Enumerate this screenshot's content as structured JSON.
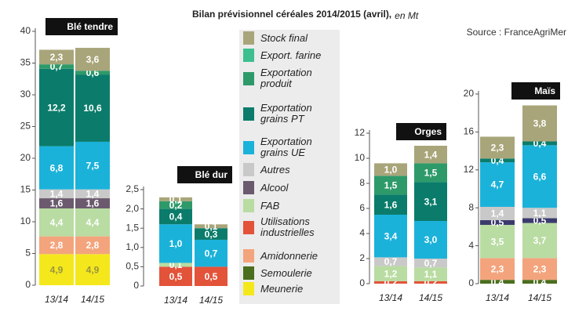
{
  "title": "Bilan prévisionnel céréales 2014/2015 (avril),",
  "unit": "en Mt",
  "source": "Source : FranceAgriMer",
  "chart_data": [
    {
      "type": "bar",
      "stacked": true,
      "title": "Blé tendre",
      "categories": [
        "13/14",
        "14/15"
      ],
      "ylim": [
        0,
        40
      ],
      "yticks": [
        0,
        5,
        10,
        15,
        20,
        25,
        30,
        35,
        40
      ],
      "series": [
        {
          "name": "Meunerie",
          "color": "#f4e81c",
          "values": [
            4.9,
            4.9
          ],
          "value_labels": [
            "4,9",
            "4,9"
          ]
        },
        {
          "name": "Semoulerie",
          "color": "#4a6e1e",
          "values": [
            null,
            null
          ],
          "value_labels": [
            null,
            null
          ]
        },
        {
          "name": "Amidonnerie",
          "color": "#f3a47c",
          "values": [
            2.8,
            2.8
          ],
          "value_labels": [
            "2,8",
            "2,8"
          ]
        },
        {
          "name": "Utilisations industrielles",
          "color": "#e2533a",
          "values": [
            null,
            null
          ],
          "value_labels": [
            null,
            null
          ]
        },
        {
          "name": "FAB",
          "color": "#b9dca2",
          "values": [
            4.4,
            4.4
          ],
          "value_labels": [
            "4,4",
            "4,4"
          ]
        },
        {
          "name": "Alcool",
          "color": "#6b5a6e",
          "values": [
            1.6,
            1.6
          ],
          "value_labels": [
            "1,6",
            "1,6"
          ]
        },
        {
          "name": "Autres",
          "color": "#c9c9c9",
          "values": [
            1.4,
            1.4
          ],
          "value_labels": [
            "1,4",
            "1,4"
          ]
        },
        {
          "name": "Exportation grains UE",
          "color": "#1bb2da",
          "values": [
            6.8,
            7.5
          ],
          "value_labels": [
            "6,8",
            "7,5"
          ]
        },
        {
          "name": "Exportation grains PT",
          "color": "#0b7c6b",
          "values": [
            12.2,
            10.6
          ],
          "value_labels": [
            "12,2",
            "10,6"
          ]
        },
        {
          "name": "Exportation produit",
          "color": "#2e9a6a",
          "values": [
            0.7,
            0.6
          ],
          "value_labels": [
            "0,7",
            "0,6"
          ]
        },
        {
          "name": "Export. farine",
          "color": "#3dbf8f",
          "values": [
            null,
            null
          ],
          "value_labels": [
            null,
            null
          ]
        },
        {
          "name": "Stock final",
          "color": "#a9a57a",
          "values": [
            2.3,
            3.6
          ],
          "value_labels": [
            "2,3",
            "3,6"
          ]
        }
      ]
    },
    {
      "type": "bar",
      "stacked": true,
      "title": "Blé dur",
      "categories": [
        "13/14",
        "14/15"
      ],
      "ylim": [
        0,
        2.5
      ],
      "yticks": [
        0,
        {
          "value": 0.5,
          "label": "0,5"
        },
        {
          "value": 1,
          "label": "1,0"
        },
        {
          "value": 1.5,
          "label": "1,5"
        },
        {
          "value": 2,
          "label": "2,0"
        },
        {
          "value": 2.5,
          "label": "2,5"
        }
      ],
      "series": [
        {
          "name": "Meunerie",
          "color": "#f4e81c",
          "values": [
            null,
            null
          ],
          "value_labels": [
            null,
            null
          ]
        },
        {
          "name": "Semoulerie",
          "color": "#4a6e1e",
          "values": [
            null,
            null
          ],
          "value_labels": [
            null,
            null
          ]
        },
        {
          "name": "Amidonnerie",
          "color": "#f3a47c",
          "values": [
            null,
            null
          ],
          "value_labels": [
            null,
            null
          ]
        },
        {
          "name": "Utilisations industrielles",
          "color": "#e2533a",
          "values": [
            0.5,
            0.5
          ],
          "value_labels": [
            "0,5",
            "0,5"
          ]
        },
        {
          "name": "FAB",
          "color": "#b9dca2",
          "values": [
            0.1,
            null
          ],
          "value_labels": [
            "0,1",
            null
          ]
        },
        {
          "name": "Alcool",
          "color": "#6b5a6e",
          "values": [
            null,
            null
          ],
          "value_labels": [
            null,
            null
          ]
        },
        {
          "name": "Autres",
          "color": "#c9c9c9",
          "values": [
            null,
            null
          ],
          "value_labels": [
            null,
            null
          ]
        },
        {
          "name": "Exportation grains UE",
          "color": "#1bb2da",
          "values": [
            1.0,
            0.7
          ],
          "value_labels": [
            "1,0",
            "0,7"
          ]
        },
        {
          "name": "Exportation grains PT",
          "color": "#0b7c6b",
          "values": [
            0.4,
            0.3
          ],
          "value_labels": [
            "0,4",
            "0,3"
          ]
        },
        {
          "name": "Exportation produit",
          "color": "#2e9a6a",
          "values": [
            0.2,
            null
          ],
          "value_labels": [
            "0,2",
            null
          ]
        },
        {
          "name": "Export. farine",
          "color": "#3dbf8f",
          "values": [
            null,
            null
          ],
          "value_labels": [
            null,
            null
          ]
        },
        {
          "name": "Stock final",
          "color": "#a9a57a",
          "values": [
            0.1,
            0.1
          ],
          "value_labels": [
            "0,1",
            "0,1"
          ]
        }
      ]
    },
    {
      "type": "bar",
      "stacked": true,
      "title": "Orges",
      "categories": [
        "13/14",
        "14/15"
      ],
      "ylim": [
        0,
        12
      ],
      "yticks": [
        0,
        2,
        4,
        6,
        8,
        10,
        12
      ],
      "series": [
        {
          "name": "Meunerie",
          "color": "#f4e81c",
          "values": [
            null,
            null
          ],
          "value_labels": [
            null,
            null
          ]
        },
        {
          "name": "Semoulerie",
          "color": "#4a6e1e",
          "values": [
            null,
            null
          ],
          "value_labels": [
            null,
            null
          ]
        },
        {
          "name": "Amidonnerie",
          "color": "#f3a47c",
          "values": [
            null,
            null
          ],
          "value_labels": [
            null,
            null
          ]
        },
        {
          "name": "Utilisations industrielles",
          "color": "#e2533a",
          "values": [
            0.2,
            0.2
          ],
          "value_labels": [
            "0,2",
            "0,2"
          ]
        },
        {
          "name": "FAB",
          "color": "#b9dca2",
          "values": [
            1.2,
            1.1
          ],
          "value_labels": [
            "1,2",
            "1,1"
          ]
        },
        {
          "name": "Alcool",
          "color": "#6b5a6e",
          "values": [
            null,
            null
          ],
          "value_labels": [
            null,
            null
          ]
        },
        {
          "name": "Autres",
          "color": "#c9c9c9",
          "values": [
            0.7,
            0.7
          ],
          "value_labels": [
            "0,7",
            "0,7"
          ]
        },
        {
          "name": "Exportation grains UE",
          "color": "#1bb2da",
          "values": [
            3.4,
            3.0
          ],
          "value_labels": [
            "3,4",
            "3,0"
          ]
        },
        {
          "name": "Exportation grains PT",
          "color": "#0b7c6b",
          "values": [
            1.6,
            3.1
          ],
          "value_labels": [
            "1,6",
            "3,1"
          ]
        },
        {
          "name": "Exportation produit",
          "color": "#2e9a6a",
          "values": [
            1.5,
            1.5
          ],
          "value_labels": [
            "1,5",
            "1,5"
          ]
        },
        {
          "name": "Export. farine",
          "color": "#3dbf8f",
          "values": [
            null,
            null
          ],
          "value_labels": [
            null,
            null
          ]
        },
        {
          "name": "Stock final",
          "color": "#a9a57a",
          "values": [
            1.0,
            1.4
          ],
          "value_labels": [
            "1,0",
            "1,4"
          ]
        }
      ]
    },
    {
      "type": "bar",
      "stacked": true,
      "title": "Maïs",
      "categories": [
        "13/14",
        "14/15"
      ],
      "ylim": [
        0,
        20
      ],
      "yticks": [
        0,
        4,
        8,
        12,
        16,
        20
      ],
      "series": [
        {
          "name": "Meunerie",
          "color": "#f4e81c",
          "values": [
            null,
            null
          ],
          "value_labels": [
            null,
            null
          ]
        },
        {
          "name": "Semoulerie",
          "color": "#4a6e1e",
          "values": [
            0.4,
            0.4
          ],
          "value_labels": [
            "0,4",
            "0,4"
          ]
        },
        {
          "name": "Amidonnerie",
          "color": "#f3a47c",
          "values": [
            2.3,
            2.3
          ],
          "value_labels": [
            "2,3",
            "2,3"
          ]
        },
        {
          "name": "Utilisations industrielles",
          "color": "#e2533a",
          "values": [
            null,
            null
          ],
          "value_labels": [
            null,
            null
          ]
        },
        {
          "name": "FAB",
          "color": "#b9dca2",
          "values": [
            3.5,
            3.7
          ],
          "value_labels": [
            "3,5",
            "3,7"
          ]
        },
        {
          "name": "Alcool",
          "color": "#3b3a6e",
          "values": [
            0.5,
            0.5
          ],
          "value_labels": [
            "0,5",
            "0,5"
          ]
        },
        {
          "name": "Autres",
          "color": "#c9c9c9",
          "values": [
            1.4,
            1.1
          ],
          "value_labels": [
            "1,4",
            "1,1"
          ]
        },
        {
          "name": "Exportation grains UE",
          "color": "#1bb2da",
          "values": [
            4.7,
            6.6
          ],
          "value_labels": [
            "4,7",
            "6,6"
          ]
        },
        {
          "name": "Exportation grains PT",
          "color": "#0b7c6b",
          "values": [
            0.4,
            0.4
          ],
          "value_labels": [
            "0,4",
            "0,4"
          ]
        },
        {
          "name": "Exportation produit",
          "color": "#2e9a6a",
          "values": [
            null,
            null
          ],
          "value_labels": [
            null,
            null
          ]
        },
        {
          "name": "Export. farine",
          "color": "#3dbf8f",
          "values": [
            null,
            null
          ],
          "value_labels": [
            null,
            null
          ]
        },
        {
          "name": "Stock final",
          "color": "#a9a57a",
          "values": [
            2.3,
            3.8
          ],
          "value_labels": [
            "2,3",
            "3,8"
          ]
        }
      ]
    }
  ]
}
